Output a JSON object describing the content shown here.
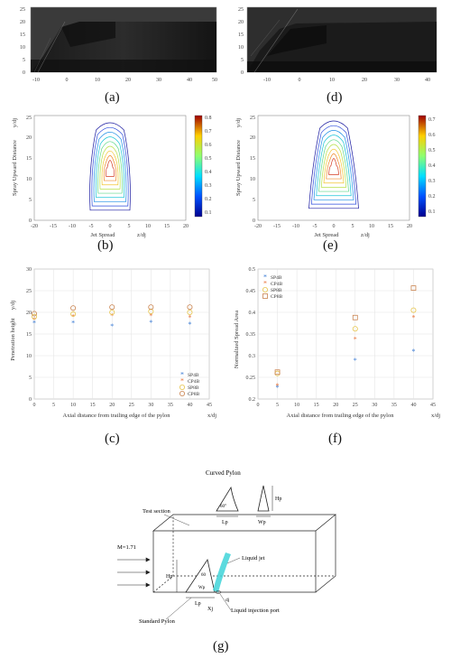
{
  "figure": {
    "panels": {
      "a": {
        "caption": "(a)",
        "x_ticks": [
          "-10",
          "0",
          "10",
          "20",
          "30",
          "40",
          "50"
        ],
        "y_ticks": [
          "0",
          "5",
          "10",
          "15",
          "20",
          "25"
        ]
      },
      "d": {
        "caption": "(d)",
        "x_ticks": [
          "-10",
          "0",
          "10",
          "20",
          "30",
          "40"
        ],
        "y_ticks": [
          "0",
          "5",
          "10",
          "15",
          "20",
          "25"
        ]
      },
      "b": {
        "caption": "(b)",
        "xlabel": "Jet Spread",
        "xunit": "z/dj",
        "ylabel": "Spray Upward Distance",
        "yunit": "y/dj",
        "x_ticks": [
          "-20",
          "-15",
          "-10",
          "-5",
          "0",
          "5",
          "10",
          "15",
          "20"
        ],
        "y_ticks": [
          "0",
          "5",
          "10",
          "15",
          "20",
          "25"
        ],
        "colorbar_ticks": [
          "0.8",
          "0.7",
          "0.6",
          "0.5",
          "0.4",
          "0.3",
          "0.2",
          "0.1"
        ]
      },
      "e": {
        "caption": "(e)",
        "xlabel": "Jet Spread",
        "xunit": "z/dj",
        "ylabel": "Spray Upward Distance",
        "yunit": "y/dj",
        "x_ticks": [
          "-20",
          "-15",
          "-10",
          "-5",
          "0",
          "5",
          "10",
          "15",
          "20"
        ],
        "y_ticks": [
          "0",
          "5",
          "10",
          "15",
          "20",
          "25"
        ],
        "colorbar_ticks": [
          "0.7",
          "0.6",
          "0.5",
          "0.4",
          "0.3",
          "0.2",
          "0.1"
        ]
      },
      "c": {
        "caption": "(c)"
      },
      "f": {
        "caption": "(f)"
      },
      "g": {
        "caption": "(g)",
        "labels": {
          "curved_pylon": "Curved Pylon",
          "hp": "Hp",
          "lp": "Lp",
          "wp": "Wp",
          "angle": "60°",
          "test_section": "Test section",
          "mach": "M=1.71",
          "liquid_jet": "Liquid jet",
          "injection_port": "Liquid injection port",
          "standard_pylon": "Standard Pylon",
          "hp2": "Hp",
          "lp2": "Lp",
          "wp2": "Wp",
          "xj": "Xj",
          "dj": "dj",
          "angle2": "60"
        }
      }
    }
  },
  "chart_data": [
    {
      "type": "scatter",
      "id": "c",
      "xlabel": "Axial distance from trailing edge of the pylon",
      "xunit": "x/dj",
      "ylabel": "Penetration height",
      "yunit": "y/dj",
      "xlim": [
        0,
        45
      ],
      "ylim": [
        0,
        30
      ],
      "x_ticks": [
        "0",
        "5",
        "10",
        "15",
        "20",
        "25",
        "30",
        "35",
        "40",
        "45"
      ],
      "y_ticks": [
        "0",
        "5",
        "10",
        "15",
        "20",
        "25",
        "30"
      ],
      "grid": true,
      "legend_position": "bottom-right",
      "series": [
        {
          "name": "SP4B",
          "marker": "star",
          "color": "#3a7bd5",
          "x": [
            0,
            10,
            20,
            30,
            40
          ],
          "y": [
            17.5,
            17.5,
            16.8,
            17.6,
            17.2
          ]
        },
        {
          "name": "CP4B",
          "marker": "star",
          "color": "#e8743b",
          "x": [
            0,
            10,
            20,
            30,
            40
          ],
          "y": [
            18.2,
            19.0,
            19.2,
            19.2,
            18.7
          ]
        },
        {
          "name": "SP8B",
          "marker": "circle",
          "color": "#e6c44a",
          "x": [
            0,
            10,
            20,
            30,
            40
          ],
          "y": [
            19.0,
            19.6,
            20.0,
            20.2,
            20.0
          ]
        },
        {
          "name": "CP8B",
          "marker": "circle",
          "color": "#c9824e",
          "x": [
            0,
            10,
            20,
            30,
            40
          ],
          "y": [
            19.7,
            21.0,
            21.2,
            21.2,
            21.2
          ]
        }
      ]
    },
    {
      "type": "scatter",
      "id": "f",
      "xlabel": "Axial distance from trailing edge of the pylon",
      "xunit": "x/dj",
      "ylabel": "Normalized Spread Area",
      "xlim": [
        0,
        45
      ],
      "ylim": [
        0.2,
        0.5
      ],
      "x_ticks": [
        "0",
        "5",
        "10",
        "15",
        "20",
        "25",
        "30",
        "35",
        "40",
        "45"
      ],
      "y_ticks": [
        "0.2",
        "0.25",
        "0.3",
        "0.35",
        "0.4",
        "0.45",
        "0.5"
      ],
      "grid": true,
      "legend_position": "top-left",
      "series": [
        {
          "name": "SP4B",
          "marker": "star",
          "color": "#3a7bd5",
          "x": [
            5,
            25,
            40
          ],
          "y": [
            0.226,
            0.289,
            0.309
          ]
        },
        {
          "name": "CP4B",
          "marker": "star",
          "color": "#e8743b",
          "x": [
            5,
            25,
            40
          ],
          "y": [
            0.23,
            0.338,
            0.387
          ]
        },
        {
          "name": "SP8B",
          "marker": "circle",
          "color": "#e6c44a",
          "x": [
            5,
            25,
            40
          ],
          "y": [
            0.259,
            0.362,
            0.405
          ]
        },
        {
          "name": "CP8B",
          "marker": "square",
          "color": "#c9824e",
          "x": [
            5,
            25,
            40
          ],
          "y": [
            0.262,
            0.388,
            0.456
          ]
        }
      ]
    }
  ]
}
